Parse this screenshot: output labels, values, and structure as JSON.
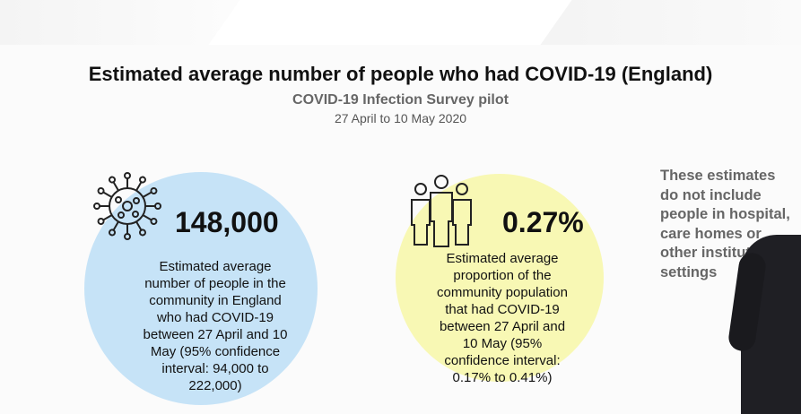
{
  "slide": {
    "title": "Estimated average number of people who had COVID-19 (England)",
    "subtitle": "COVID-19 Infection Survey pilot",
    "dates": "27 April to 10 May 2020"
  },
  "left_stat": {
    "icon": "virus-icon",
    "value": "148,000",
    "description": "Estimated average number of people in the community in England who had COVID-19 between 27 April and 10 May (95% confidence interval: 94,000 to 222,000)",
    "color": "#c6e3f7"
  },
  "right_stat": {
    "icon": "people-group-icon",
    "value": "0.27%",
    "description": "Estimated average proportion of the community population that had COVID-19 between 27 April and 10 May (95% confidence interval: 0.17% to 0.41%)",
    "color": "#f8f8b4"
  },
  "note": "These estimates do not include people in hospital, care homes or other institutional settings"
}
